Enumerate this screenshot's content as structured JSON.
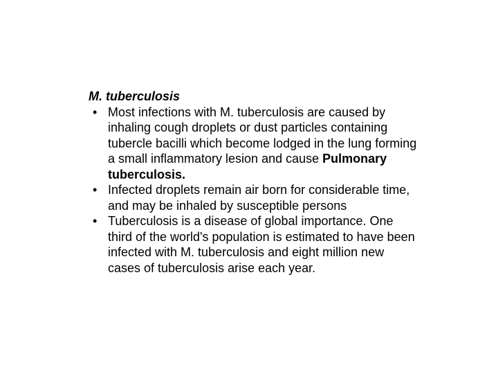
{
  "heading": "M. tuberculosis",
  "bullets": [
    {
      "pre": "Most infections with M. tuberculosis are caused by inhaling cough droplets or dust particles containing tubercle bacilli which become lodged in the lung forming a small inflammatory lesion and cause ",
      "bold": "Pulmonary tuberculosis.",
      "post": ""
    },
    {
      "pre": "Infected droplets remain air born for considerable time, and may be inhaled by susceptible persons",
      "bold": "",
      "post": ""
    },
    {
      "pre": "Tuberculosis is a disease of global importance. One third of the world's population is estimated to have been infected with M. tuberculosis and eight million new cases of tuberculosis arise each year.",
      "bold": "",
      "post": ""
    }
  ],
  "colors": {
    "background": "#ffffff",
    "text": "#000000"
  },
  "typography": {
    "font_family": "Arial",
    "base_fontsize_pt": 14,
    "heading_fontstyle": "italic bold"
  }
}
